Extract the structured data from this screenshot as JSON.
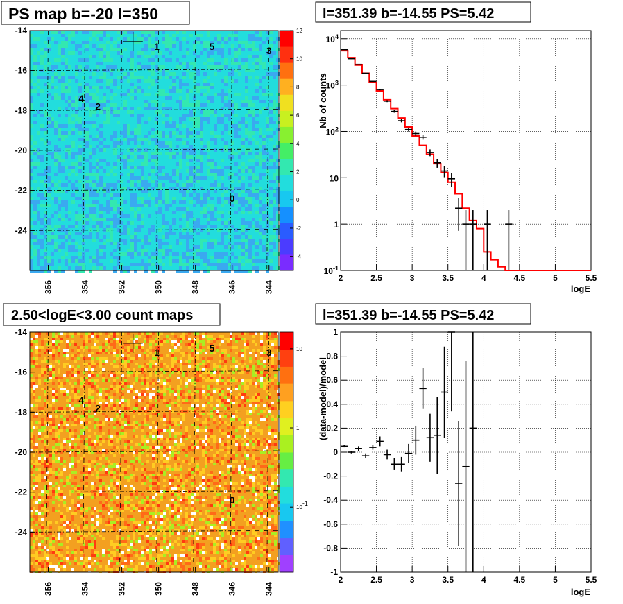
{
  "colors": {
    "map_bg": "#22dddd",
    "counts_bg": "#f3a020",
    "model_line": "#ff0000",
    "data": "#000000"
  },
  "panels": {
    "ps_map": {
      "title": "PS map b=-20 l=350"
    },
    "spectrum": {
      "title": "l=351.39 b=-14.55 PS=5.42"
    },
    "count_map": {
      "title": "2.50<logE<3.00 count maps"
    },
    "residual": {
      "title": "l=351.39 b=-14.55 PS=5.42"
    }
  },
  "chart_data": [
    {
      "type": "heatmap",
      "title": "PS map b=-20 l=350",
      "xlim": [
        357,
        343.5
      ],
      "ylim": [
        -26,
        -14
      ],
      "x_ticks": [
        "356",
        "354",
        "352",
        "350",
        "348",
        "346",
        "344"
      ],
      "y_ticks": [
        "-14",
        "-16",
        "-18",
        "-20",
        "-22",
        "-24"
      ],
      "colorbar": {
        "range": [
          -5,
          12
        ],
        "ticks": [
          "12",
          "10",
          "8",
          "6",
          "4",
          "2",
          "0",
          "-2",
          "-4"
        ]
      },
      "sources": [
        {
          "label": "1",
          "l": 350.1,
          "b": -14.8
        },
        {
          "label": "5",
          "l": 347.1,
          "b": -14.8
        },
        {
          "label": "3",
          "l": 344.0,
          "b": -15.0
        },
        {
          "label": "4",
          "l": 354.2,
          "b": -17.4
        },
        {
          "label": "2",
          "l": 353.3,
          "b": -17.8
        },
        {
          "label": "0",
          "l": 346.0,
          "b": -22.4
        }
      ],
      "marker": {
        "l": 351.39,
        "b": -14.55
      }
    },
    {
      "type": "line",
      "title": "l=351.39 b=-14.55 PS=5.42",
      "xlabel": "logE",
      "ylabel": "Nb of counts",
      "ylog": true,
      "xlim": [
        2,
        5.5
      ],
      "ylim": [
        0.1,
        15000
      ],
      "x_ticks": [
        "2",
        "2.5",
        "3",
        "3.5",
        "4",
        "4.5",
        "5",
        "5.5"
      ],
      "y_ticks": [
        "10^{-1}",
        "1",
        "10",
        "10^2",
        "10^3",
        "10^4"
      ],
      "model": {
        "x": [
          2,
          2.1,
          2.2,
          2.3,
          2.4,
          2.5,
          2.6,
          2.7,
          2.8,
          2.9,
          3.0,
          3.1,
          3.2,
          3.3,
          3.4,
          3.5,
          3.6,
          3.7,
          3.8,
          3.9,
          4.0,
          4.1,
          4.2,
          4.3,
          4.4,
          4.5,
          4.6,
          4.7,
          4.8,
          4.9,
          5.0,
          5.1,
          5.2,
          5.3,
          5.4
        ],
        "y": [
          5500,
          3900,
          2700,
          1800,
          1150,
          750,
          480,
          310,
          195,
          125,
          80,
          50,
          32,
          20,
          13,
          8,
          4.5,
          2.2,
          1.2,
          0.8,
          0.25,
          0.17,
          0.12,
          0.1,
          0.1,
          0.1,
          0.1,
          0.1,
          0.1,
          0.1,
          0.1,
          0.1,
          0.1,
          0.1,
          0.1
        ]
      },
      "data": {
        "x": [
          2.05,
          2.15,
          2.25,
          2.35,
          2.45,
          2.55,
          2.65,
          2.75,
          2.85,
          2.95,
          3.05,
          3.15,
          3.25,
          3.35,
          3.45,
          3.55,
          3.65,
          3.75,
          3.85,
          4.05,
          4.35
        ],
        "y": [
          5800,
          3700,
          2800,
          1800,
          1200,
          800,
          450,
          270,
          170,
          110,
          90,
          75,
          35,
          21,
          14,
          9.5,
          2.2,
          1,
          1,
          1,
          1
        ]
      }
    },
    {
      "type": "heatmap",
      "title": "2.50<logE<3.00 count maps",
      "xlim": [
        357,
        343.5
      ],
      "ylim": [
        -26,
        -14
      ],
      "x_ticks": [
        "356",
        "354",
        "352",
        "350",
        "348",
        "346",
        "344"
      ],
      "y_ticks": [
        "-14",
        "-16",
        "-18",
        "-20",
        "-22",
        "-24"
      ],
      "colorbar": {
        "log": true,
        "ticks": [
          "10",
          "1",
          "10^{-1}"
        ]
      },
      "sources": [
        {
          "label": "1",
          "l": 350.1,
          "b": -15.0
        },
        {
          "label": "5",
          "l": 347.1,
          "b": -14.8
        },
        {
          "label": "3",
          "l": 344.0,
          "b": -15.0
        },
        {
          "label": "4",
          "l": 354.2,
          "b": -17.4
        },
        {
          "label": "2",
          "l": 353.3,
          "b": -17.8
        },
        {
          "label": "0",
          "l": 346.0,
          "b": -22.4
        }
      ],
      "marker": {
        "l": 351.39,
        "b": -14.55
      }
    },
    {
      "type": "scatter",
      "title": "l=351.39 b=-14.55 PS=5.42",
      "xlabel": "logE",
      "ylabel": "(data-model)/model",
      "xlim": [
        2,
        5.5
      ],
      "ylim": [
        -1,
        1
      ],
      "x_ticks": [
        "2",
        "2.5",
        "3",
        "3.5",
        "4",
        "4.5",
        "5",
        "5.5"
      ],
      "y_ticks": [
        "-1",
        "-0.8",
        "-0.6",
        "-0.4",
        "-0.2",
        "0",
        "0.2",
        "0.4",
        "0.6",
        "0.8",
        "1"
      ],
      "points": {
        "x": [
          2.05,
          2.15,
          2.25,
          2.35,
          2.45,
          2.55,
          2.65,
          2.75,
          2.85,
          2.95,
          3.05,
          3.15,
          3.25,
          3.35,
          3.45,
          3.55,
          3.65,
          3.75,
          3.85
        ],
        "y": [
          0.05,
          0.0,
          0.03,
          -0.03,
          0.04,
          0.09,
          -0.02,
          -0.1,
          -0.1,
          -0.01,
          0.1,
          0.53,
          0.12,
          0.14,
          0.5,
          1.0,
          -0.26,
          -0.12,
          0.2
        ],
        "err": [
          0.01,
          0.01,
          0.02,
          0.02,
          0.02,
          0.04,
          0.04,
          0.05,
          0.06,
          0.08,
          0.12,
          0.17,
          0.2,
          0.32,
          0.38,
          0.66,
          0.52,
          0.88,
          1.6
        ]
      }
    }
  ]
}
